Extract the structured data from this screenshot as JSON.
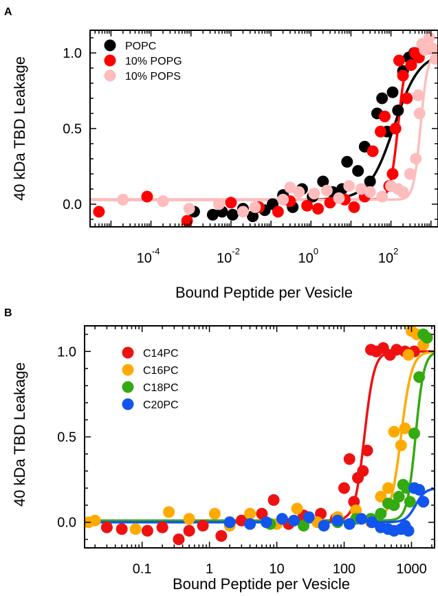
{
  "chart_data": [
    {
      "panel": "A",
      "type": "scatter",
      "xscale": "log",
      "xlim": [
        3e-06,
        1500
      ],
      "ylim": [
        -0.15,
        1.15
      ],
      "xlabel": "Bound Peptide per Vesicle",
      "ylabel": "40 kDa TBD Leakage",
      "x_ticks": [
        {
          "value": 0.0001,
          "base": "10",
          "exp": "-4"
        },
        {
          "value": 0.01,
          "base": "10",
          "exp": "-2"
        },
        {
          "value": 1,
          "base": "10",
          "exp": "0"
        },
        {
          "value": 100,
          "base": "10",
          "exp": "2"
        }
      ],
      "y_ticks": [
        {
          "value": 0,
          "label": "0.0"
        },
        {
          "value": 0.5,
          "label": "0.5"
        },
        {
          "value": 1,
          "label": "1.0"
        }
      ],
      "legend_position": "top-left",
      "series": [
        {
          "name": "POPC",
          "color": "#000000",
          "fit": {
            "ymin": 0.03,
            "ymax": 1.0,
            "x50": 120,
            "hill": 1.4
          },
          "points": [
            [
              0.0012,
              -0.05
            ],
            [
              0.0035,
              -0.07
            ],
            [
              0.006,
              -0.05
            ],
            [
              0.011,
              -0.07
            ],
            [
              0.02,
              -0.03
            ],
            [
              0.035,
              -0.08
            ],
            [
              0.07,
              -0.04
            ],
            [
              0.11,
              0.0
            ],
            [
              0.2,
              0.06
            ],
            [
              0.35,
              -0.02
            ],
            [
              0.6,
              0.1
            ],
            [
              1.1,
              0.05
            ],
            [
              2,
              0.15
            ],
            [
              3.5,
              0.08
            ],
            [
              6,
              0.1
            ],
            [
              8,
              0.28
            ],
            [
              15,
              0.22
            ],
            [
              22,
              0.38
            ],
            [
              30,
              0.15
            ],
            [
              45,
              0.6
            ],
            [
              60,
              0.7
            ],
            [
              80,
              0.48
            ],
            [
              110,
              0.74
            ],
            [
              150,
              0.62
            ],
            [
              200,
              0.88
            ],
            [
              280,
              0.97
            ],
            [
              380,
              1.0
            ]
          ]
        },
        {
          "name": "10% POPG",
          "color": "#ff0000",
          "fit": {
            "ymin": 0.03,
            "ymax": 1.0,
            "x50": 150,
            "hill": 4.5
          },
          "points": [
            [
              5e-06,
              -0.05
            ],
            [
              8e-05,
              0.05
            ],
            [
              0.0008,
              -0.11
            ],
            [
              0.01,
              0.01
            ],
            [
              0.05,
              -0.02
            ],
            [
              0.15,
              -0.05
            ],
            [
              0.3,
              0.02
            ],
            [
              0.8,
              -0.01
            ],
            [
              1.5,
              -0.03
            ],
            [
              3,
              0.01
            ],
            [
              7,
              0.03
            ],
            [
              12,
              -0.02
            ],
            [
              22,
              0.05
            ],
            [
              35,
              0.35
            ],
            [
              55,
              0.48
            ],
            [
              70,
              0.58
            ],
            [
              90,
              0.12
            ],
            [
              110,
              0.2
            ],
            [
              130,
              0.5
            ],
            [
              160,
              0.95
            ],
            [
              200,
              0.85
            ],
            [
              250,
              0.7
            ],
            [
              320,
              0.92
            ],
            [
              400,
              1.0
            ],
            [
              500,
              0.97
            ]
          ]
        },
        {
          "name": "10% POPS",
          "color": "#ffbcbc",
          "fit": {
            "ymin": 0.03,
            "ymax": 1.0,
            "x50": 550,
            "hill": 5.0
          },
          "points": [
            [
              2e-05,
              0.03
            ],
            [
              0.0002,
              0.02
            ],
            [
              0.0009,
              -0.03
            ],
            [
              0.005,
              0.0
            ],
            [
              0.02,
              -0.05
            ],
            [
              0.04,
              -0.02
            ],
            [
              0.2,
              0.03
            ],
            [
              0.3,
              0.11
            ],
            [
              0.5,
              0.08
            ],
            [
              1.2,
              0.07
            ],
            [
              2.5,
              0.09
            ],
            [
              5,
              0.04
            ],
            [
              9,
              0.12
            ],
            [
              18,
              0.1
            ],
            [
              30,
              0.08
            ],
            [
              60,
              0.05
            ],
            [
              100,
              0.12
            ],
            [
              150,
              0.1
            ],
            [
              200,
              0.08
            ],
            [
              300,
              0.2
            ],
            [
              420,
              0.3
            ],
            [
              480,
              0.72
            ],
            [
              520,
              0.6
            ],
            [
              600,
              1.06
            ],
            [
              700,
              1.02
            ],
            [
              900,
              1.1
            ],
            [
              1100,
              1.03
            ],
            [
              1300,
              0.96
            ]
          ]
        }
      ]
    },
    {
      "panel": "B",
      "type": "scatter",
      "xscale": "log",
      "xlim": [
        0.014,
        2200
      ],
      "ylim": [
        -0.15,
        1.15
      ],
      "xlabel": "Bound Peptide per Vesicle",
      "ylabel": "40 kDa TBD Leakage",
      "x_ticks": [
        {
          "value": 0.1,
          "label": "0.1"
        },
        {
          "value": 1,
          "label": "1"
        },
        {
          "value": 10,
          "label": "10"
        },
        {
          "value": 100,
          "label": "100"
        },
        {
          "value": 1000,
          "label": "1000"
        }
      ],
      "y_ticks": [
        {
          "value": 0,
          "label": "0.0"
        },
        {
          "value": 0.5,
          "label": "0.5"
        },
        {
          "value": 1,
          "label": "1.0"
        }
      ],
      "legend_position": "top-left",
      "series": [
        {
          "name": "C14PC",
          "color": "#ee1111",
          "fit": {
            "ymin": 0.01,
            "ymax": 1.0,
            "x50": 200,
            "hill": 6.0
          },
          "points": [
            [
              0.03,
              -0.03
            ],
            [
              0.05,
              -0.04
            ],
            [
              0.12,
              -0.05
            ],
            [
              0.2,
              -0.03
            ],
            [
              0.35,
              -0.1
            ],
            [
              0.5,
              -0.05
            ],
            [
              0.8,
              -0.02
            ],
            [
              1.5,
              -0.08
            ],
            [
              3,
              0.01
            ],
            [
              6,
              0.05
            ],
            [
              9,
              0.13
            ],
            [
              15,
              -0.01
            ],
            [
              25,
              0.04
            ],
            [
              45,
              0.05
            ],
            [
              75,
              0.02
            ],
            [
              100,
              0.2
            ],
            [
              120,
              0.37
            ],
            [
              140,
              0.12
            ],
            [
              160,
              0.26
            ],
            [
              190,
              0.3
            ],
            [
              220,
              0.42
            ],
            [
              250,
              1.01
            ],
            [
              300,
              1.0
            ],
            [
              380,
              1.02
            ],
            [
              480,
              0.98
            ],
            [
              600,
              1.01
            ],
            [
              800,
              1.0
            ],
            [
              1100,
              1.0
            ]
          ]
        },
        {
          "name": "C16PC",
          "color": "#ffaa00",
          "fit": {
            "ymin": 0.01,
            "ymax": 1.0,
            "x50": 700,
            "hill": 5.5
          },
          "points": [
            [
              0.016,
              0.0
            ],
            [
              0.02,
              0.01
            ],
            [
              0.08,
              -0.04
            ],
            [
              0.25,
              0.06
            ],
            [
              0.5,
              0.02
            ],
            [
              1.2,
              0.05
            ],
            [
              2,
              -0.02
            ],
            [
              4,
              0.05
            ],
            [
              10,
              -0.01
            ],
            [
              20,
              0.08
            ],
            [
              40,
              0.0
            ],
            [
              80,
              0.03
            ],
            [
              150,
              0.07
            ],
            [
              250,
              0.0
            ],
            [
              350,
              0.15
            ],
            [
              450,
              0.2
            ],
            [
              550,
              0.53
            ],
            [
              700,
              0.45
            ],
            [
              800,
              0.55
            ],
            [
              900,
              0.98
            ],
            [
              1000,
              1.12
            ],
            [
              1200,
              1.1
            ],
            [
              1500,
              1.04
            ]
          ]
        },
        {
          "name": "C18PC",
          "color": "#33aa11",
          "fit": {
            "ymin": 0.01,
            "ymax": 1.0,
            "x50": 1150,
            "hill": 7.0
          },
          "points": [
            [
              2,
              0.0
            ],
            [
              8,
              -0.01
            ],
            [
              25,
              -0.02
            ],
            [
              80,
              0.0
            ],
            [
              150,
              0.02
            ],
            [
              250,
              0.02
            ],
            [
              350,
              0.05
            ],
            [
              450,
              0.11
            ],
            [
              550,
              0.1
            ],
            [
              650,
              0.15
            ],
            [
              750,
              0.22
            ],
            [
              850,
              0.2
            ],
            [
              950,
              0.12
            ],
            [
              1100,
              0.52
            ],
            [
              1300,
              0.85
            ],
            [
              1500,
              1.1
            ],
            [
              1700,
              1.08
            ]
          ]
        },
        {
          "name": "C20PC",
          "color": "#1155ee",
          "fit": {
            "ymin": 0.0,
            "ymax": 0.2,
            "x50": 1150,
            "hill": 6.0
          },
          "points": [
            [
              2,
              0.0
            ],
            [
              4,
              -0.01
            ],
            [
              7,
              0.0
            ],
            [
              12,
              0.02
            ],
            [
              18,
              0.01
            ],
            [
              30,
              0.03
            ],
            [
              50,
              -0.02
            ],
            [
              80,
              0.01
            ],
            [
              120,
              -0.01
            ],
            [
              180,
              0.02
            ],
            [
              260,
              0.0
            ],
            [
              350,
              -0.03
            ],
            [
              450,
              -0.04
            ],
            [
              550,
              -0.05
            ],
            [
              700,
              -0.04
            ],
            [
              800,
              -0.02
            ],
            [
              900,
              -0.05
            ],
            [
              1100,
              0.2
            ],
            [
              1300,
              0.19
            ],
            [
              1500,
              0.12
            ]
          ]
        }
      ]
    }
  ]
}
